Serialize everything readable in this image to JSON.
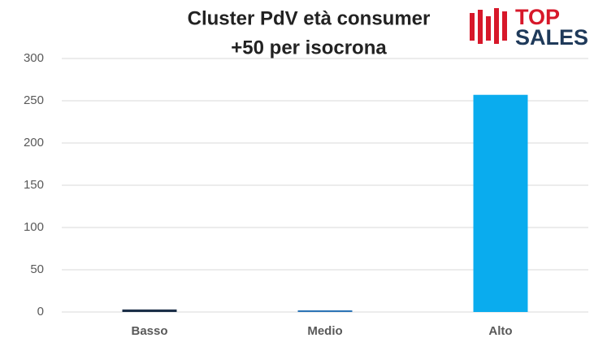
{
  "chart_data": {
    "type": "bar",
    "title": [
      "Cluster PdV età consumer",
      "+50 per isocrona"
    ],
    "categories": [
      "Basso",
      "Medio",
      "Alto"
    ],
    "values": [
      3,
      2,
      257
    ],
    "colors": [
      "#1b2f48",
      "#2e75b6",
      "#0aacee"
    ],
    "ylim": [
      0,
      300
    ],
    "yticks": [
      0,
      50,
      100,
      150,
      200,
      250,
      300
    ],
    "grid": true
  },
  "logo": {
    "top": "TOP",
    "bottom": "SALES"
  }
}
